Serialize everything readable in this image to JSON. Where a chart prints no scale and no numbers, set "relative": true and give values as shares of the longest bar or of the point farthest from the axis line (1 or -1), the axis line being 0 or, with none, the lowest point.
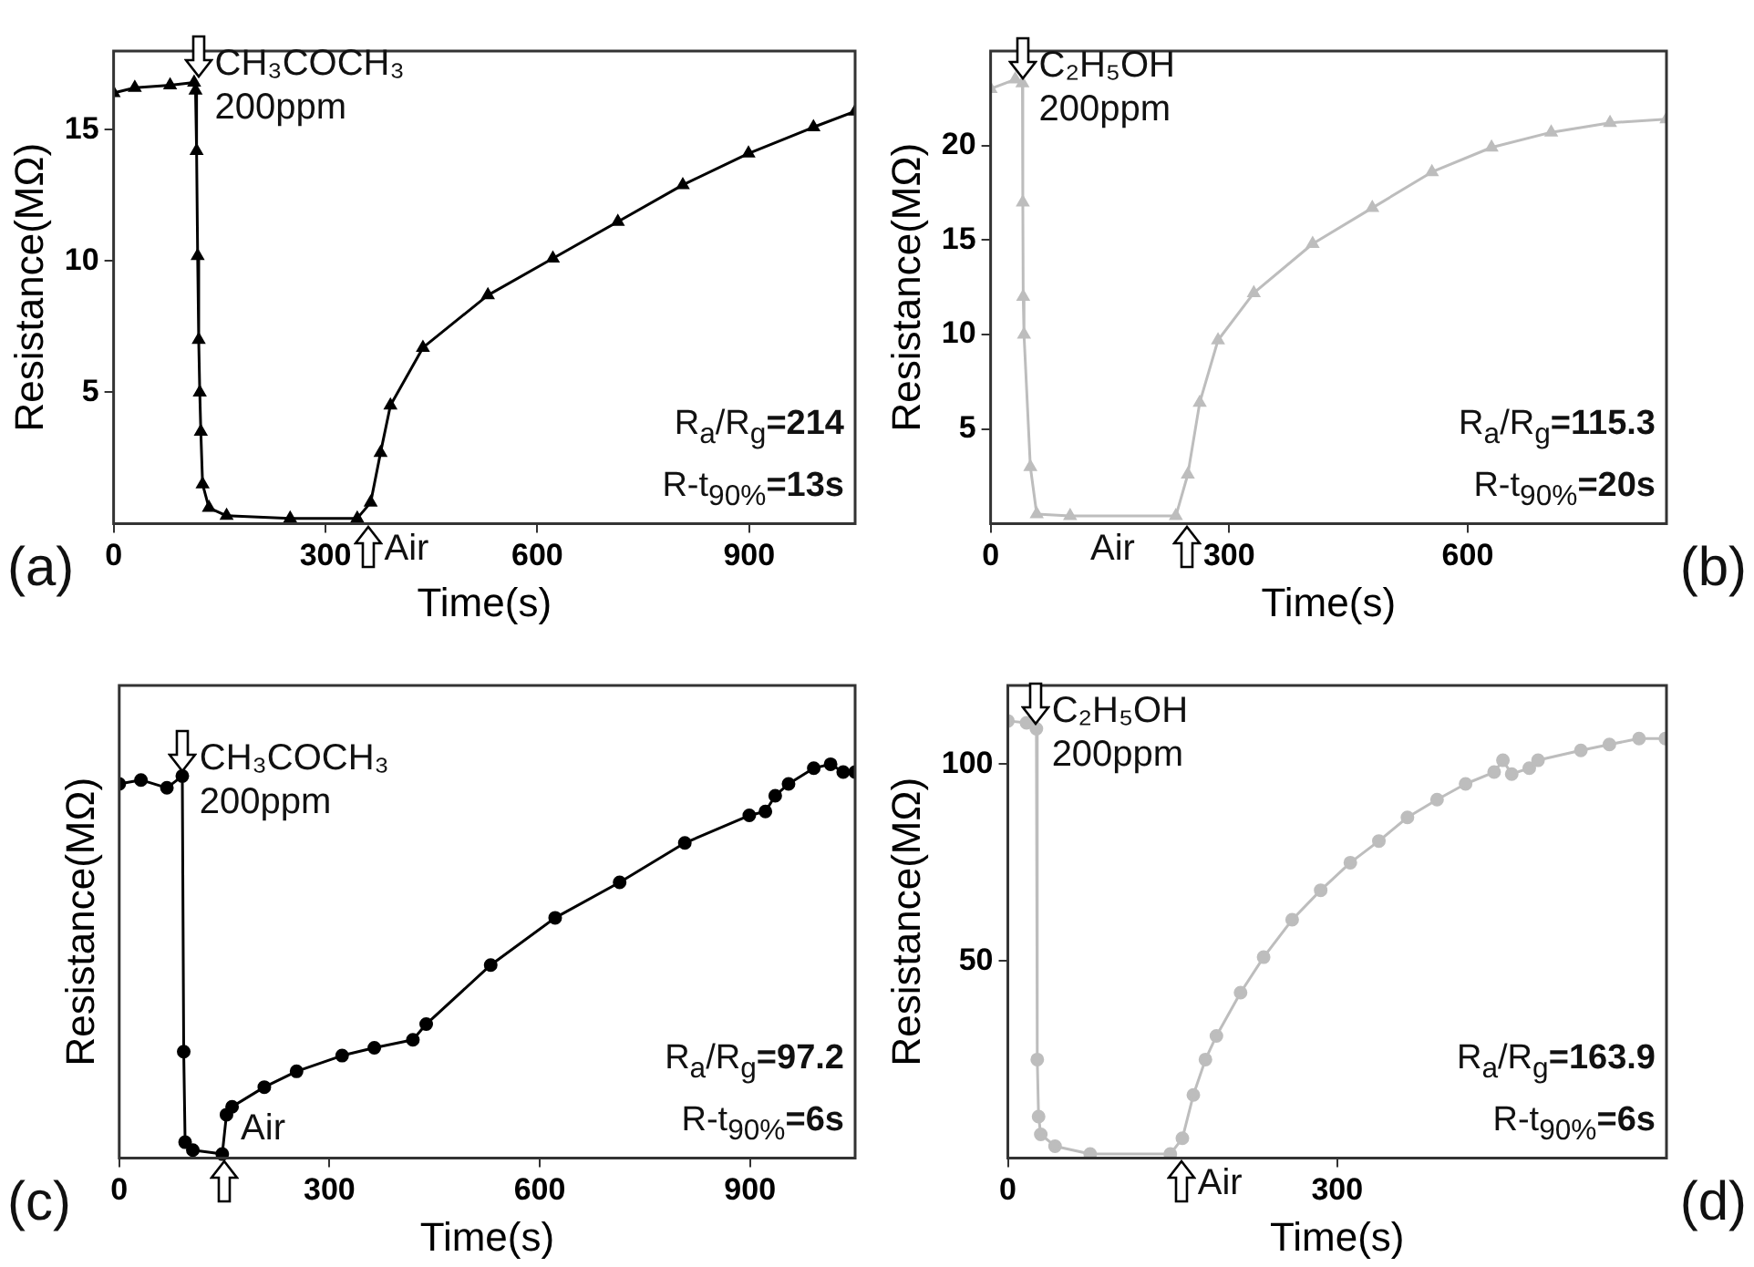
{
  "chart_data": [
    {
      "type": "line",
      "title": "(a)",
      "xlabel": "Time(s)",
      "ylabel": "Resistance(MΩ)",
      "marker": "triangle",
      "xlim": [
        0,
        1050
      ],
      "xticks": [
        0,
        300,
        600,
        900
      ],
      "ylim": [
        0,
        18
      ],
      "yticks": [
        5,
        10,
        15
      ],
      "series": [
        {
          "color": "#000000",
          "x": [
            0,
            30,
            80,
            114,
            116,
            117.5,
            119,
            120.5,
            122,
            123.5,
            126,
            135,
            160,
            250,
            345,
            364,
            378,
            392,
            438,
            530,
            622,
            714,
            806,
            899,
            991,
            1050
          ],
          "values": [
            16.4,
            16.6,
            16.7,
            16.8,
            16.5,
            14.2,
            10.2,
            7,
            5,
            3.5,
            1.5,
            0.6,
            0.3,
            0.2,
            0.2,
            0.8,
            2.7,
            4.5,
            6.7,
            8.7,
            10.1,
            11.5,
            12.9,
            14.1,
            15.1,
            15.7
          ]
        }
      ],
      "annotations": [
        {
          "text": "CH₃COCH₃\n200ppm",
          "x": 120,
          "y": 16.8
        },
        {
          "text": "Air",
          "x": 360,
          "y": 0.5
        },
        "R$_{a}$/R$_{g}$=214",
        "R-t$_{90%}$=13s"
      ]
    },
    {
      "type": "line",
      "title": "(b)",
      "xlabel": "Time(s)",
      "ylabel": "Resistance(MΩ)",
      "marker": "triangle",
      "xlim": [
        0,
        850
      ],
      "xticks": [
        0,
        300,
        600
      ],
      "ylim": [
        0,
        25
      ],
      "yticks": [
        5,
        10,
        15,
        20
      ],
      "series": [
        {
          "color": "#bdbdbd",
          "x": [
            0,
            31,
            40,
            40.5,
            41,
            42,
            50,
            58,
            100,
            233,
            248,
            263,
            286,
            331,
            405,
            480,
            555,
            630,
            705,
            779,
            850
          ],
          "values": [
            23,
            23.5,
            23.3,
            17,
            12,
            10,
            3,
            0.5,
            0.4,
            0.4,
            2.6,
            6.4,
            9.7,
            12.2,
            14.8,
            16.7,
            18.6,
            19.9,
            20.7,
            21.2,
            21.4
          ]
        }
      ],
      "annotations": [
        {
          "text": "C₂H₅OH\n200ppm",
          "x": 40,
          "y": 23.3
        },
        {
          "text": "Air",
          "x": 247,
          "y": 2
        },
        "R$_{a}$/R$_{g}$=115.3",
        "R-t$_{90%}$=20s"
      ]
    },
    {
      "type": "line",
      "title": "(c)",
      "xlabel": "Time(s)",
      "ylabel": "Resistance(MΩ)",
      "marker": "circle",
      "relative": true,
      "xlim": [
        0,
        1050
      ],
      "xticks": [
        0,
        300,
        600,
        900
      ],
      "series": [
        {
          "color": "#000000",
          "x": [
            0,
            31,
            68,
            90,
            92,
            94,
            105,
            147,
            153,
            161,
            207,
            253,
            318,
            364,
            419,
            438,
            530,
            622,
            714,
            807,
            899,
            922,
            936,
            955,
            991,
            1015,
            1033,
            1050
          ],
          "values": [
            0.95,
            0.96,
            0.94,
            0.97,
            0.27,
            0.04,
            0.02,
            0.01,
            0.11,
            0.13,
            0.18,
            0.22,
            0.26,
            0.28,
            0.3,
            0.34,
            0.49,
            0.61,
            0.7,
            0.8,
            0.87,
            0.88,
            0.92,
            0.95,
            0.99,
            1,
            0.98,
            0.98
          ]
        }
      ],
      "annotations": [
        {
          "text": "CH₃COCH₃\n200ppm",
          "x": 91,
          "y": 0.97
        },
        {
          "text": "Air",
          "x": 150,
          "y": 0.01
        },
        "R$_{a}$/R$_{g}$=97.2",
        "R-t$_{90%}$=6s"
      ]
    },
    {
      "type": "line",
      "title": "(d)",
      "xlabel": "Time(s)",
      "ylabel": "Resistance(MΩ)",
      "marker": "circle",
      "xlim": [
        0,
        600
      ],
      "xticks": [
        0,
        300
      ],
      "ylim": [
        0,
        120
      ],
      "yticks": [
        50,
        100
      ],
      "series": [
        {
          "color": "#bdbdbd",
          "x": [
            0,
            17,
            26,
            26.8,
            28,
            30,
            43,
            75,
            148,
            159,
            169,
            180,
            190,
            212,
            233,
            259,
            285,
            312,
            338,
            364,
            391,
            417,
            443,
            451,
            459,
            475,
            483,
            522,
            548,
            575,
            599
          ],
          "values": [
            111,
            110.5,
            109,
            25,
            10.5,
            6,
            3,
            1,
            1,
            5,
            16,
            25,
            31,
            42,
            51,
            60.5,
            68,
            75,
            80.5,
            86.5,
            91,
            95,
            98,
            101,
            97.5,
            99,
            101,
            103.5,
            105,
            106.5,
            106.5
          ]
        }
      ],
      "annotations": [
        {
          "text": "C₂H₅OH\n200ppm",
          "x": 25,
          "y": 109
        },
        {
          "text": "Air",
          "x": 158,
          "y": 3
        },
        "R$_{a}$/R$_{g}$=163.9",
        "R-t$_{90%}$=6s"
      ]
    }
  ]
}
